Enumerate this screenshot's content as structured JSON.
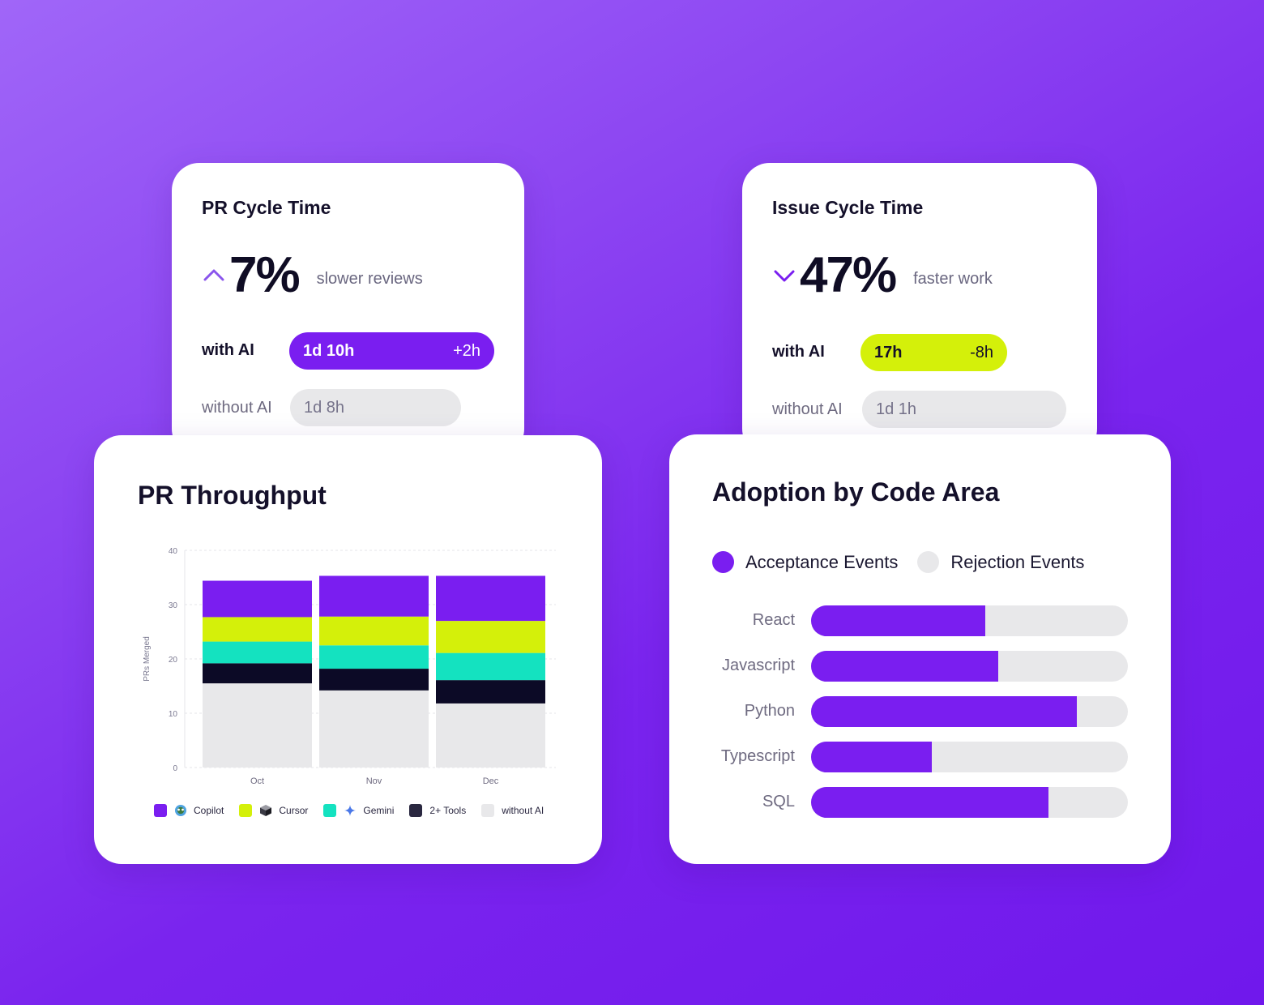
{
  "colors": {
    "purple": "#7a1ef0",
    "lime": "#d4f00a",
    "teal": "#14e2c0",
    "dark": "#0c0a26",
    "grey": "#e8e8ea"
  },
  "pr_cycle": {
    "title": "PR Cycle Time",
    "direction_icon": "chevron-up-icon",
    "percent": "7%",
    "description": "slower reviews",
    "with_ai_label": "with AI",
    "with_ai_value": "1d 10h",
    "with_ai_delta": "+2h",
    "without_ai_label": "without AI",
    "without_ai_value": "1d 8h"
  },
  "issue_cycle": {
    "title": "Issue Cycle Time",
    "direction_icon": "chevron-down-icon",
    "percent": "47%",
    "description": "faster work",
    "with_ai_label": "with AI",
    "with_ai_value": "17h",
    "with_ai_delta": "-8h",
    "without_ai_label": "without AI",
    "without_ai_value": "1d 1h"
  },
  "chart_data": [
    {
      "type": "bar",
      "stacked": true,
      "title": "PR Throughput",
      "ylabel": "PRs Merged",
      "xlabel": "",
      "ylim": [
        0,
        40
      ],
      "yticks": [
        "0",
        "10",
        "20",
        "30",
        "40"
      ],
      "grid": true,
      "legend_position": "bottom",
      "categories": [
        "Oct",
        "Nov",
        "Dec"
      ],
      "series": [
        {
          "name": "without AI",
          "color": "#e8e8ea",
          "values": [
            15.5,
            14.2,
            11.8
          ]
        },
        {
          "name": "2+ Tools",
          "color": "#0c0a26",
          "icon": "tools-icon",
          "values": [
            3.7,
            4.0,
            4.3
          ]
        },
        {
          "name": "Gemini",
          "color": "#14e2c0",
          "icon": "gemini-sparkle-icon",
          "values": [
            4.0,
            4.3,
            5.0
          ]
        },
        {
          "name": "Cursor",
          "color": "#d4f00a",
          "icon": "cursor-cube-icon",
          "values": [
            4.5,
            5.3,
            5.9
          ]
        },
        {
          "name": "Copilot",
          "color": "#7a1ef0",
          "icon": "copilot-icon",
          "values": [
            6.7,
            7.5,
            8.3
          ]
        }
      ]
    },
    {
      "type": "bar",
      "orientation": "horizontal",
      "title": "Adoption by Code Area",
      "legend_position": "top",
      "series_names": [
        "Acceptance Events",
        "Rejection Events"
      ],
      "series_colors": [
        "#7a1ef0",
        "#e8e8ea"
      ],
      "categories": [
        "React",
        "Javascript",
        "Python",
        "Typescript",
        "SQL"
      ],
      "acceptance_share": [
        0.55,
        0.59,
        0.84,
        0.38,
        0.75
      ]
    }
  ]
}
